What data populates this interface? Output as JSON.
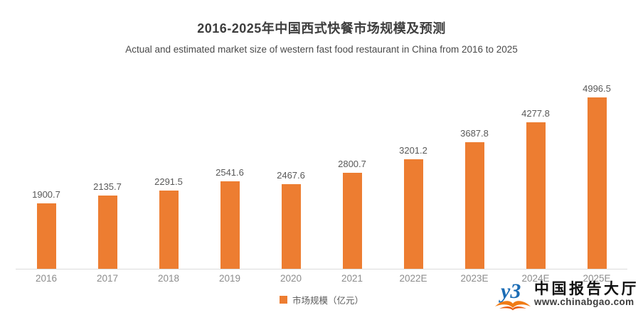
{
  "chart_data": {
    "type": "bar",
    "title": "2016-2025年中国西式快餐市场规模及预测",
    "subtitle": "Actual and estimated market size of western fast food restaurant in China from 2016 to 2025",
    "categories": [
      "2016",
      "2017",
      "2018",
      "2019",
      "2020",
      "2021",
      "2022E",
      "2023E",
      "2024E",
      "2025E"
    ],
    "values": [
      1900.7,
      2135.7,
      2291.5,
      2541.6,
      2467.6,
      2800.7,
      3201.2,
      3687.8,
      4277.8,
      4996.5
    ],
    "unit": "亿元",
    "legend_label": "市场规模（亿元）",
    "legend_position": "bottom",
    "grid": false,
    "ylim": [
      0,
      5000
    ],
    "xlabel": "",
    "ylabel": "",
    "bar_color": "#ED7D31",
    "value_label_color": "#595959",
    "axis_label_color": "#8C8C8C",
    "baseline_color": "#DCDCDC"
  },
  "watermark": {
    "name": "中国报告大厅",
    "url": "www.chinabgao.com",
    "logo": "chinabgao-logo",
    "logo_blue": "#1B6CB5",
    "logo_orange": "#F07B16"
  }
}
